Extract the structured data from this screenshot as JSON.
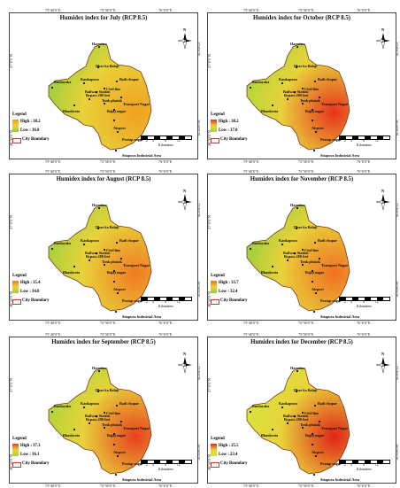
{
  "coords": {
    "lon_left": "75°40'0\"E",
    "lon_mid": "75°50'0\"E",
    "lon_right": "76°0'0\"E",
    "lat_top": "27°0'0\"N",
    "lat_bottom": "26°50'0\"N"
  },
  "north_label": "N",
  "legend_title": "Legend",
  "boundary_label": "City Boundary",
  "scale": {
    "ticks": [
      "0",
      "2",
      "4",
      "8",
      "12"
    ],
    "unit": "Kilometers"
  },
  "places": [
    "Harmara",
    "Dhar ka Balaji",
    "Kankapura",
    "Bindayaka",
    "Badi chopar",
    "Civil line",
    "Railway Station",
    "Bypass 200 feet",
    "Tonk phatak",
    "Transport Nagar",
    "Bhankrota",
    "Bajaj nagar",
    "Airport",
    "Pratap nagar",
    "Sitapura Industrial Area"
  ],
  "panels": [
    {
      "title": "Humidex index for July (RCP 8.5)",
      "high": "High : 38.2",
      "low": "Low : 36.8",
      "colors": {
        "low": "#8fcf3c",
        "high": "#f0a020"
      }
    },
    {
      "title": "Humidex index for October (RCP 8.5)",
      "high": "High : 38.2",
      "low": "Low : 37.0",
      "colors": {
        "low": "#a8d83a",
        "high": "#e8331e"
      }
    },
    {
      "title": "Humidex index for August (RCP 8.5)",
      "high": "High : 35.4",
      "low": "Low : 34.0",
      "colors": {
        "low": "#9ad23c",
        "high": "#f07a22"
      }
    },
    {
      "title": "Humidex index for November (RCP 8.5)",
      "high": "High : 33.7",
      "low": "Low : 32.4",
      "colors": {
        "low": "#8fcf3c",
        "high": "#f07022"
      }
    },
    {
      "title": "Humidex index for September (RCP 8.5)",
      "high": "High : 37.3",
      "low": "Low : 36.1",
      "colors": {
        "low": "#a4d63a",
        "high": "#e8401e"
      }
    },
    {
      "title": "Humidex index for December (RCP 8.5)",
      "high": "High : 25.5",
      "low": "Low : 23.4",
      "colors": {
        "low": "#d6e83c",
        "high": "#e02418"
      }
    }
  ]
}
